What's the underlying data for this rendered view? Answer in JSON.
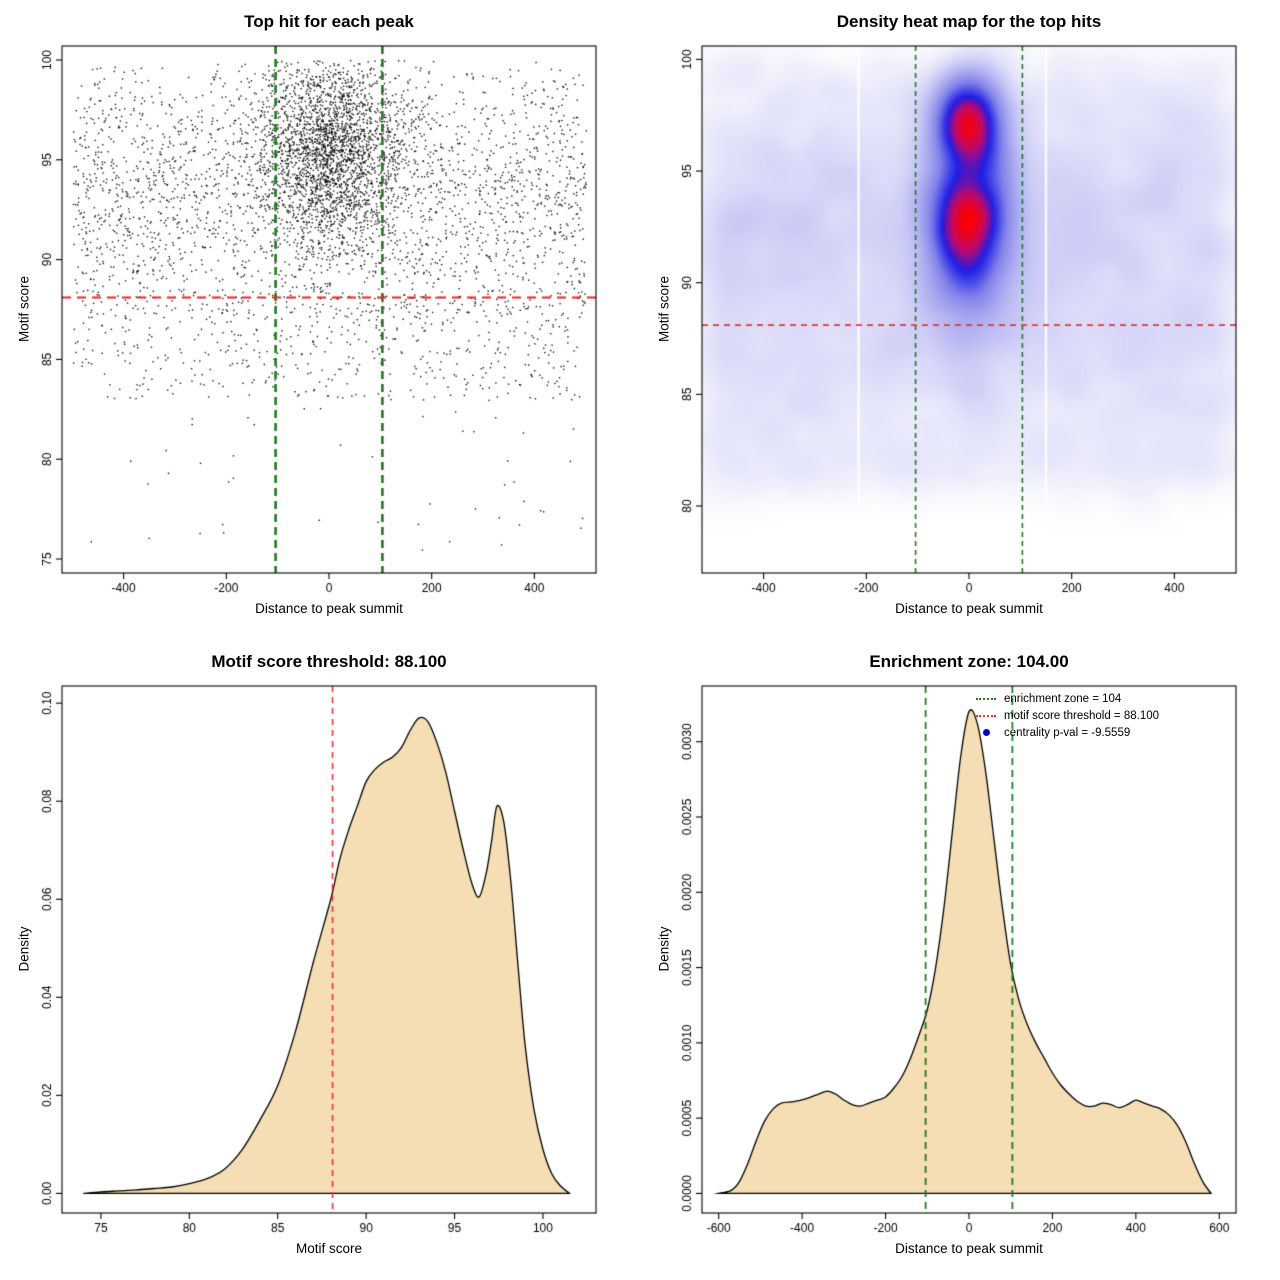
{
  "figure": {
    "background": "#FFFFFF"
  },
  "chart_data": [
    {
      "type": "scatter",
      "title": "Top hit for each peak",
      "xlabel": "Distance to peak summit",
      "ylabel": "Motif score",
      "xlim": [
        -520,
        520
      ],
      "ylim": [
        74.3,
        100.7
      ],
      "xticks": [
        -400,
        -200,
        0,
        200,
        400
      ],
      "xticklabels": [
        "-400",
        "-200",
        "0",
        "200",
        "400"
      ],
      "yticks": [
        75,
        80,
        85,
        90,
        95,
        100
      ],
      "yticklabels": [
        "75",
        "80",
        "85",
        "90",
        "95",
        "100"
      ],
      "point_color": "#000000",
      "seed": 42,
      "mixture": [
        {
          "n": 2600,
          "x": {
            "dist": "uniform",
            "min": -500,
            "max": 500
          },
          "y": {
            "dist": "normal",
            "mean": 93.5,
            "sd": 3.6,
            "min": 82,
            "max": 100
          }
        },
        {
          "n": 2300,
          "x": {
            "dist": "normal",
            "mean": 5,
            "sd": 70,
            "min": -500,
            "max": 500
          },
          "y": {
            "dist": "normal",
            "mean": 95.5,
            "sd": 2.6,
            "min": 86,
            "max": 100
          }
        },
        {
          "n": 480,
          "x": {
            "dist": "uniform",
            "min": -500,
            "max": 500
          },
          "y": {
            "dist": "uniform",
            "min": 83,
            "max": 88.5
          }
        },
        {
          "n": 45,
          "x": {
            "dist": "uniform",
            "min": -500,
            "max": 500
          },
          "y": {
            "dist": "uniform",
            "min": 75.3,
            "max": 83
          }
        }
      ],
      "hlines": [
        {
          "y": 88.1,
          "color": "#EE2222",
          "width": 2,
          "dash": [
            9,
            6
          ]
        }
      ],
      "vlines": [
        {
          "x": -104,
          "color": "#1E7A1E",
          "width": 2.6,
          "dash": [
            8,
            5
          ]
        },
        {
          "x": 104,
          "color": "#1E7A1E",
          "width": 2.6,
          "dash": [
            8,
            5
          ]
        }
      ]
    },
    {
      "type": "heatmap",
      "title": "Density heat map for the top hits",
      "xlabel": "Distance to peak summit",
      "ylabel": "Motif score",
      "xlim": [
        -520,
        520
      ],
      "ylim": [
        77,
        100.6
      ],
      "xticks": [
        -400,
        -200,
        0,
        200,
        400
      ],
      "xticklabels": [
        "-400",
        "-200",
        "0",
        "200",
        "400"
      ],
      "yticks": [
        80,
        85,
        90,
        95,
        100
      ],
      "yticklabels": [
        "80",
        "85",
        "90",
        "95",
        "100"
      ],
      "seed": 7,
      "color_stops": [
        [
          0,
          255,
          255,
          255
        ],
        [
          0.5,
          130,
          130,
          235
        ],
        [
          0.72,
          30,
          30,
          230
        ],
        [
          0.86,
          190,
          10,
          110
        ],
        [
          1,
          255,
          0,
          0
        ]
      ],
      "mixture": [
        {
          "n": 3000,
          "x": {
            "dist": "uniform",
            "min": -500,
            "max": 500
          },
          "y": {
            "dist": "normal",
            "mean": 92,
            "sd": 4,
            "min": 80,
            "max": 100
          }
        },
        {
          "n": 2500,
          "x": {
            "dist": "normal",
            "mean": 0,
            "sd": 45,
            "min": -500,
            "max": 500
          },
          "y": {
            "dist": "normal",
            "mean": 93,
            "sd": 2.8,
            "min": 84,
            "max": 100
          }
        },
        {
          "n": 1200,
          "x": {
            "dist": "normal",
            "mean": 0,
            "sd": 28,
            "min": -500,
            "max": 500
          },
          "y": {
            "dist": "normal",
            "mean": 97.3,
            "sd": 1.0,
            "min": 90,
            "max": 100
          }
        },
        {
          "n": 900,
          "x": {
            "dist": "normal",
            "mean": 0,
            "sd": 30,
            "min": -500,
            "max": 500
          },
          "y": {
            "dist": "normal",
            "mean": 92.5,
            "sd": 1.5,
            "min": 85,
            "max": 100
          }
        },
        {
          "n": 600,
          "x": {
            "dist": "uniform",
            "min": -500,
            "max": 500
          },
          "y": {
            "dist": "uniform",
            "min": 81,
            "max": 88
          }
        }
      ],
      "gaps": [
        -215,
        150
      ],
      "hlines": [
        {
          "y": 88.1,
          "color": "#EE3333",
          "width": 1.6,
          "dash": [
            6,
            5
          ]
        }
      ],
      "vlines": [
        {
          "x": -104,
          "color": "#1E7A1E",
          "width": 1.6,
          "dash": [
            5,
            4
          ]
        },
        {
          "x": 104,
          "color": "#1E7A1E",
          "width": 1.6,
          "dash": [
            5,
            4
          ]
        }
      ]
    },
    {
      "type": "area",
      "title": "Motif score threshold: 88.100",
      "xlabel": "Motif score",
      "ylabel": "Density",
      "xlim": [
        72.8,
        103
      ],
      "ylim": [
        -0.004,
        0.1035
      ],
      "xticks": [
        75,
        80,
        85,
        90,
        95,
        100
      ],
      "xticklabels": [
        "75",
        "80",
        "85",
        "90",
        "95",
        "100"
      ],
      "yticks": [
        0,
        0.02,
        0.04,
        0.06,
        0.08,
        0.1
      ],
      "yticklabels": [
        "0.00",
        "0.02",
        "0.04",
        "0.06",
        "0.08",
        "0.10"
      ],
      "fill": "#F5DEB3",
      "line_color": "#000000",
      "x": [
        74,
        75,
        76,
        77,
        78,
        79,
        80,
        81,
        82,
        83,
        84,
        85,
        86,
        87,
        88,
        88.5,
        89,
        89.5,
        90,
        90.5,
        91,
        91.5,
        92,
        92.5,
        93,
        93.5,
        94,
        94.5,
        95,
        95.5,
        96,
        96.4,
        96.8,
        97.1,
        97.4,
        97.8,
        98.2,
        98.6,
        99,
        99.5,
        100,
        100.5,
        101,
        101.5
      ],
      "y": [
        0,
        0.0003,
        0.0005,
        0.0007,
        0.001,
        0.0013,
        0.002,
        0.003,
        0.005,
        0.009,
        0.015,
        0.022,
        0.033,
        0.047,
        0.06,
        0.068,
        0.074,
        0.079,
        0.084,
        0.0865,
        0.088,
        0.089,
        0.091,
        0.0945,
        0.097,
        0.0962,
        0.092,
        0.086,
        0.078,
        0.07,
        0.063,
        0.0605,
        0.0655,
        0.072,
        0.079,
        0.0755,
        0.063,
        0.046,
        0.03,
        0.017,
        0.009,
        0.004,
        0.0015,
        0
      ],
      "vlines": [
        {
          "x": 88.1,
          "color": "#EE3333",
          "width": 1.6,
          "dash": [
            6,
            5
          ]
        }
      ]
    },
    {
      "type": "area",
      "title": "Enrichment zone: 104.00",
      "xlabel": "Distance to peak summit",
      "ylabel": "Density",
      "xlim": [
        -640,
        640
      ],
      "ylim": [
        -0.00013,
        0.00337
      ],
      "xticks": [
        -600,
        -400,
        -200,
        0,
        200,
        400,
        600
      ],
      "xticklabels": [
        "-600",
        "-400",
        "-200",
        "0",
        "200",
        "400",
        "600"
      ],
      "yticks": [
        0,
        0.0005,
        0.001,
        0.0015,
        0.002,
        0.0025,
        0.003
      ],
      "yticklabels": [
        "0.0000",
        "0.0005",
        "0.0010",
        "0.0015",
        "0.0020",
        "0.0025",
        "0.0030"
      ],
      "fill": "#F5DEB3",
      "line_color": "#000000",
      "x": [
        -600,
        -570,
        -550,
        -530,
        -510,
        -490,
        -470,
        -450,
        -420,
        -390,
        -360,
        -340,
        -320,
        -300,
        -280,
        -260,
        -240,
        -220,
        -200,
        -180,
        -160,
        -140,
        -120,
        -100,
        -80,
        -60,
        -40,
        -20,
        0,
        20,
        40,
        60,
        80,
        100,
        120,
        140,
        160,
        180,
        200,
        220,
        240,
        260,
        280,
        300,
        320,
        340,
        360,
        380,
        400,
        420,
        440,
        460,
        480,
        500,
        520,
        540,
        560,
        580
      ],
      "y": [
        0,
        2e-05,
        8e-05,
        0.0002,
        0.00035,
        0.00048,
        0.00056,
        0.0006,
        0.00061,
        0.00063,
        0.00066,
        0.00068,
        0.00066,
        0.00062,
        0.00059,
        0.00058,
        0.0006,
        0.00062,
        0.00064,
        0.0007,
        0.00078,
        0.0009,
        0.00105,
        0.00122,
        0.0015,
        0.0019,
        0.0024,
        0.0029,
        0.0032,
        0.00312,
        0.0028,
        0.00235,
        0.0019,
        0.00152,
        0.00128,
        0.00112,
        0.001,
        0.0009,
        0.0008,
        0.00072,
        0.00066,
        0.00061,
        0.00058,
        0.00058,
        0.0006,
        0.00059,
        0.00057,
        0.00059,
        0.00062,
        0.0006,
        0.00058,
        0.00056,
        0.00052,
        0.00045,
        0.00034,
        0.0002,
        8e-05,
        0
      ],
      "vlines": [
        {
          "x": -104,
          "color": "#1E7A1E",
          "width": 1.8,
          "dash": [
            7,
            5
          ]
        },
        {
          "x": 104,
          "color": "#1E7A1E",
          "width": 1.8,
          "dash": [
            7,
            5
          ]
        }
      ],
      "legend": [
        {
          "label": "enrichment zone = 104",
          "type": "dotted-line",
          "color": "#1E7A1E"
        },
        {
          "label": "motif score threshold = 88.100",
          "type": "dotted-line",
          "color": "#EE3333"
        },
        {
          "label": "centrality p-val = -9.5559",
          "type": "dot",
          "color": "#0000CD"
        }
      ]
    }
  ]
}
